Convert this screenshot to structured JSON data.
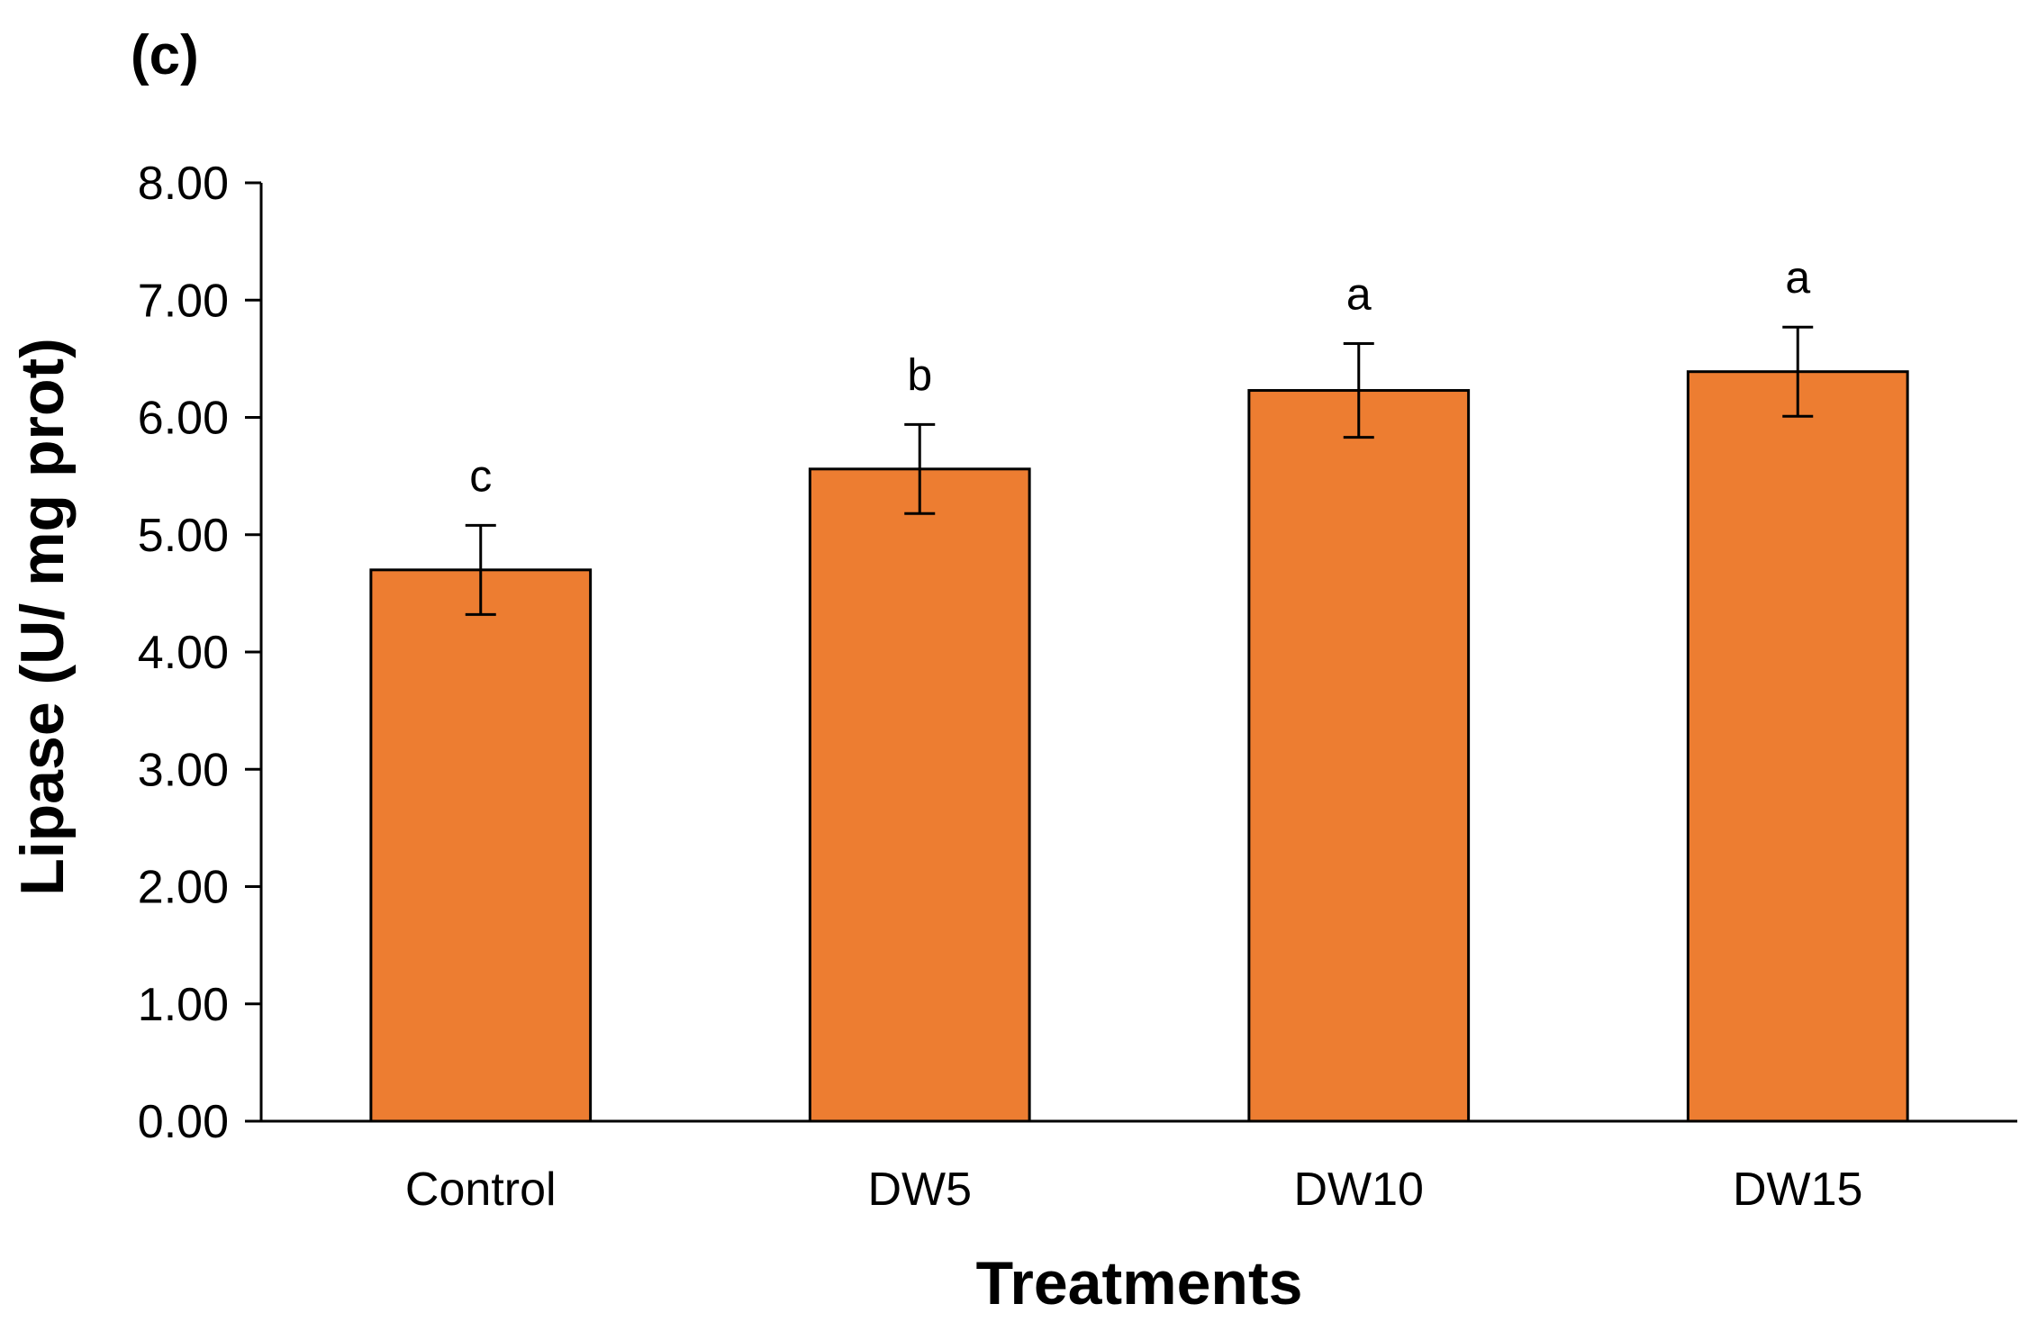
{
  "panel_label": "(c)",
  "chart_data": {
    "type": "bar",
    "title": "",
    "xlabel": "Treatments",
    "ylabel": "Lipase (U/ mg prot)",
    "categories": [
      "Control",
      "DW5",
      "DW10",
      "DW15"
    ],
    "values": [
      4.7,
      5.56,
      6.23,
      6.39
    ],
    "errors": [
      0.38,
      0.38,
      0.4,
      0.38
    ],
    "significance": [
      "c",
      "b",
      "a",
      "a"
    ],
    "ylim": [
      0,
      8
    ],
    "yticks": [
      0,
      1,
      2,
      3,
      4,
      5,
      6,
      7,
      8
    ],
    "ytick_labels": [
      "0.00",
      "1.00",
      "2.00",
      "3.00",
      "4.00",
      "5.00",
      "6.00",
      "7.00",
      "8.00"
    ],
    "bar_color": "#ED7D31",
    "bar_edge_color": "#000000",
    "grid": false,
    "legend": "none"
  }
}
